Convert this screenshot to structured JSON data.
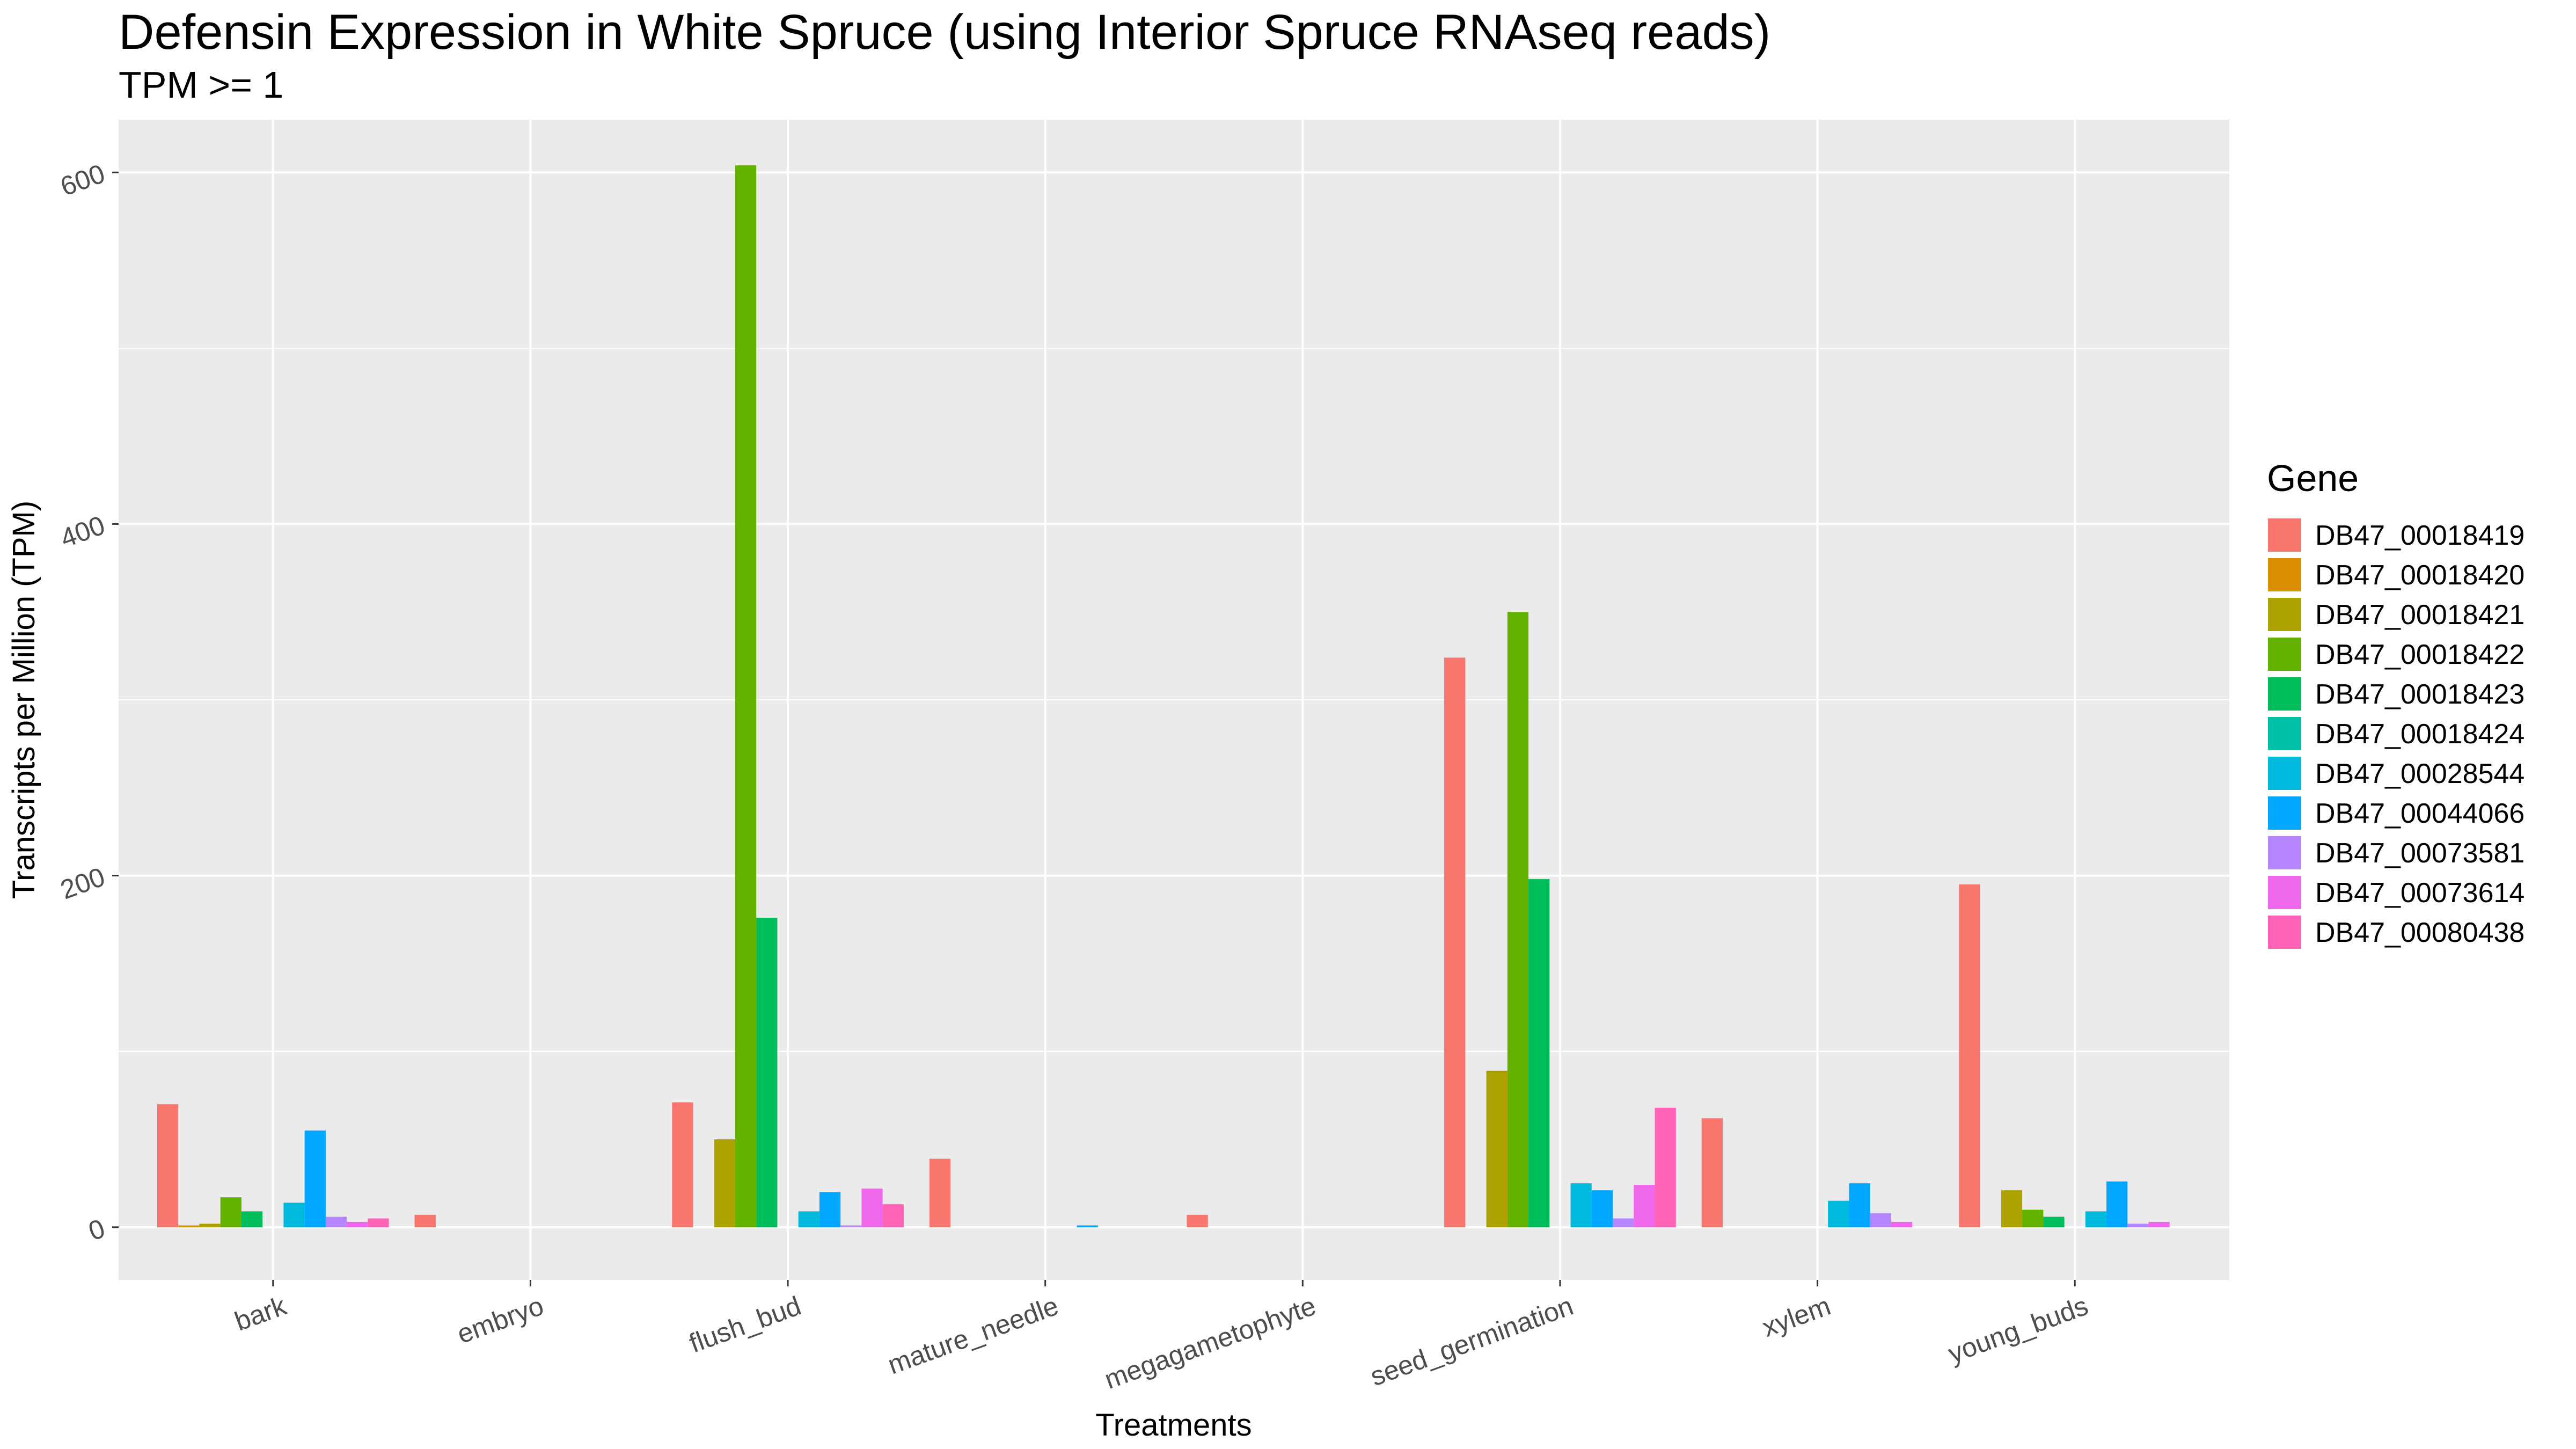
{
  "chart_data": {
    "type": "bar",
    "title": "Defensin Expression in White Spruce (using Interior Spruce RNAseq reads)",
    "subtitle": "TPM >= 1",
    "xlabel": "Treatments",
    "ylabel": "Transcripts per Million (TPM)",
    "ylim": [
      -30,
      630
    ],
    "yticks": [
      0,
      200,
      400,
      600
    ],
    "grid": true,
    "legend_title": "Gene",
    "legend_position": "right",
    "categories": [
      "bark",
      "embryo",
      "flush_bud",
      "mature_needle",
      "megagametophyte",
      "seed_germination",
      "xylem",
      "young_buds"
    ],
    "series": [
      {
        "name": "DB47_00018419",
        "color": "#F8766D",
        "values": [
          70,
          7,
          71,
          39,
          7,
          324,
          62,
          195
        ]
      },
      {
        "name": "DB47_00018420",
        "color": "#DB8E00",
        "values": [
          1,
          0,
          0,
          0,
          0,
          0,
          0,
          0
        ]
      },
      {
        "name": "DB47_00018421",
        "color": "#AEA200",
        "values": [
          2,
          0,
          50,
          0,
          0,
          89,
          0,
          21
        ]
      },
      {
        "name": "DB47_00018422",
        "color": "#64B200",
        "values": [
          17,
          0,
          604,
          0,
          0,
          350,
          0,
          10
        ]
      },
      {
        "name": "DB47_00018423",
        "color": "#00BD5C",
        "values": [
          9,
          0,
          176,
          0,
          0,
          198,
          0,
          6
        ]
      },
      {
        "name": "DB47_00018424",
        "color": "#00C1A7",
        "values": [
          0,
          0,
          0,
          0,
          0,
          0,
          0,
          0
        ]
      },
      {
        "name": "DB47_00028544",
        "color": "#00BADE",
        "values": [
          14,
          0,
          9,
          0,
          0,
          25,
          15,
          9
        ]
      },
      {
        "name": "DB47_00044066",
        "color": "#00A6FF",
        "values": [
          55,
          0,
          20,
          1,
          0,
          21,
          25,
          26
        ]
      },
      {
        "name": "DB47_00073581",
        "color": "#B385FF",
        "values": [
          6,
          0,
          1,
          0,
          0,
          5,
          8,
          2
        ]
      },
      {
        "name": "DB47_00073614",
        "color": "#EF67EB",
        "values": [
          3,
          0,
          22,
          0,
          0,
          24,
          3,
          3
        ]
      },
      {
        "name": "DB47_00080438",
        "color": "#FF63B6",
        "values": [
          5,
          0,
          13,
          0,
          0,
          68,
          0,
          0
        ]
      }
    ]
  }
}
